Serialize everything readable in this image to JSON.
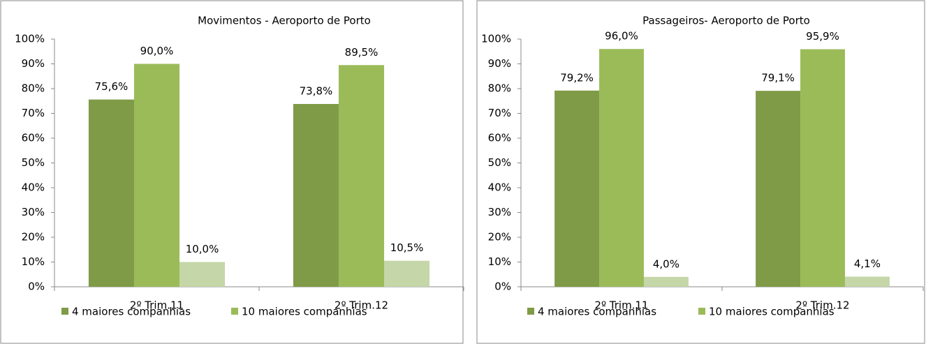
{
  "chart_data": [
    {
      "type": "bar",
      "title": "Movimentos - Aeroporto de Porto",
      "categories": [
        "2º Trim.11",
        "2º Trim.12"
      ],
      "series": [
        {
          "name": "4 maiores companhias",
          "color": "#7f9b47",
          "values": [
            75.6,
            73.8
          ],
          "value_labels": [
            "75,6%",
            "73,8%"
          ]
        },
        {
          "name": "10 maiores companhias",
          "color": "#9bbb59",
          "values": [
            90.0,
            89.5
          ],
          "value_labels": [
            "90,0%",
            "89,5%"
          ]
        },
        {
          "color": "#c5d6a8",
          "values": [
            10.0,
            10.5
          ],
          "value_labels": [
            "10,0%",
            "10,5%"
          ]
        }
      ],
      "ylim": [
        0,
        100
      ],
      "yticks": [
        {
          "value": 0,
          "label": "0%"
        },
        {
          "value": 10,
          "label": "10%"
        },
        {
          "value": 20,
          "label": "20%"
        },
        {
          "value": 30,
          "label": "30%"
        },
        {
          "value": 40,
          "label": "40%"
        },
        {
          "value": 50,
          "label": "50%"
        },
        {
          "value": 60,
          "label": "60%"
        },
        {
          "value": 70,
          "label": "70%"
        },
        {
          "value": 80,
          "label": "80%"
        },
        {
          "value": 90,
          "label": "90%"
        },
        {
          "value": 100,
          "label": "100%"
        }
      ],
      "legend": "bottom"
    },
    {
      "type": "bar",
      "title": "Passageiros- Aeroporto de Porto",
      "categories": [
        "2º Trim.11",
        "2º Trim.12"
      ],
      "series": [
        {
          "name": "4 maiores companhias",
          "color": "#7f9b47",
          "values": [
            79.2,
            79.1
          ],
          "value_labels": [
            "79,2%",
            "79,1%"
          ]
        },
        {
          "name": "10 maiores companhias",
          "color": "#9bbb59",
          "values": [
            96.0,
            95.9
          ],
          "value_labels": [
            "96,0%",
            "95,9%"
          ]
        },
        {
          "color": "#c5d6a8",
          "values": [
            4.0,
            4.1
          ],
          "value_labels": [
            "4,0%",
            "4,1%"
          ]
        }
      ],
      "ylim": [
        0,
        100
      ],
      "yticks": [
        {
          "value": 0,
          "label": "0%"
        },
        {
          "value": 10,
          "label": "10%"
        },
        {
          "value": 20,
          "label": "20%"
        },
        {
          "value": 30,
          "label": "30%"
        },
        {
          "value": 40,
          "label": "40%"
        },
        {
          "value": 50,
          "label": "50%"
        },
        {
          "value": 60,
          "label": "60%"
        },
        {
          "value": 70,
          "label": "70%"
        },
        {
          "value": 80,
          "label": "80%"
        },
        {
          "value": 90,
          "label": "90%"
        },
        {
          "value": 100,
          "label": "100%"
        }
      ],
      "legend": "bottom"
    }
  ]
}
